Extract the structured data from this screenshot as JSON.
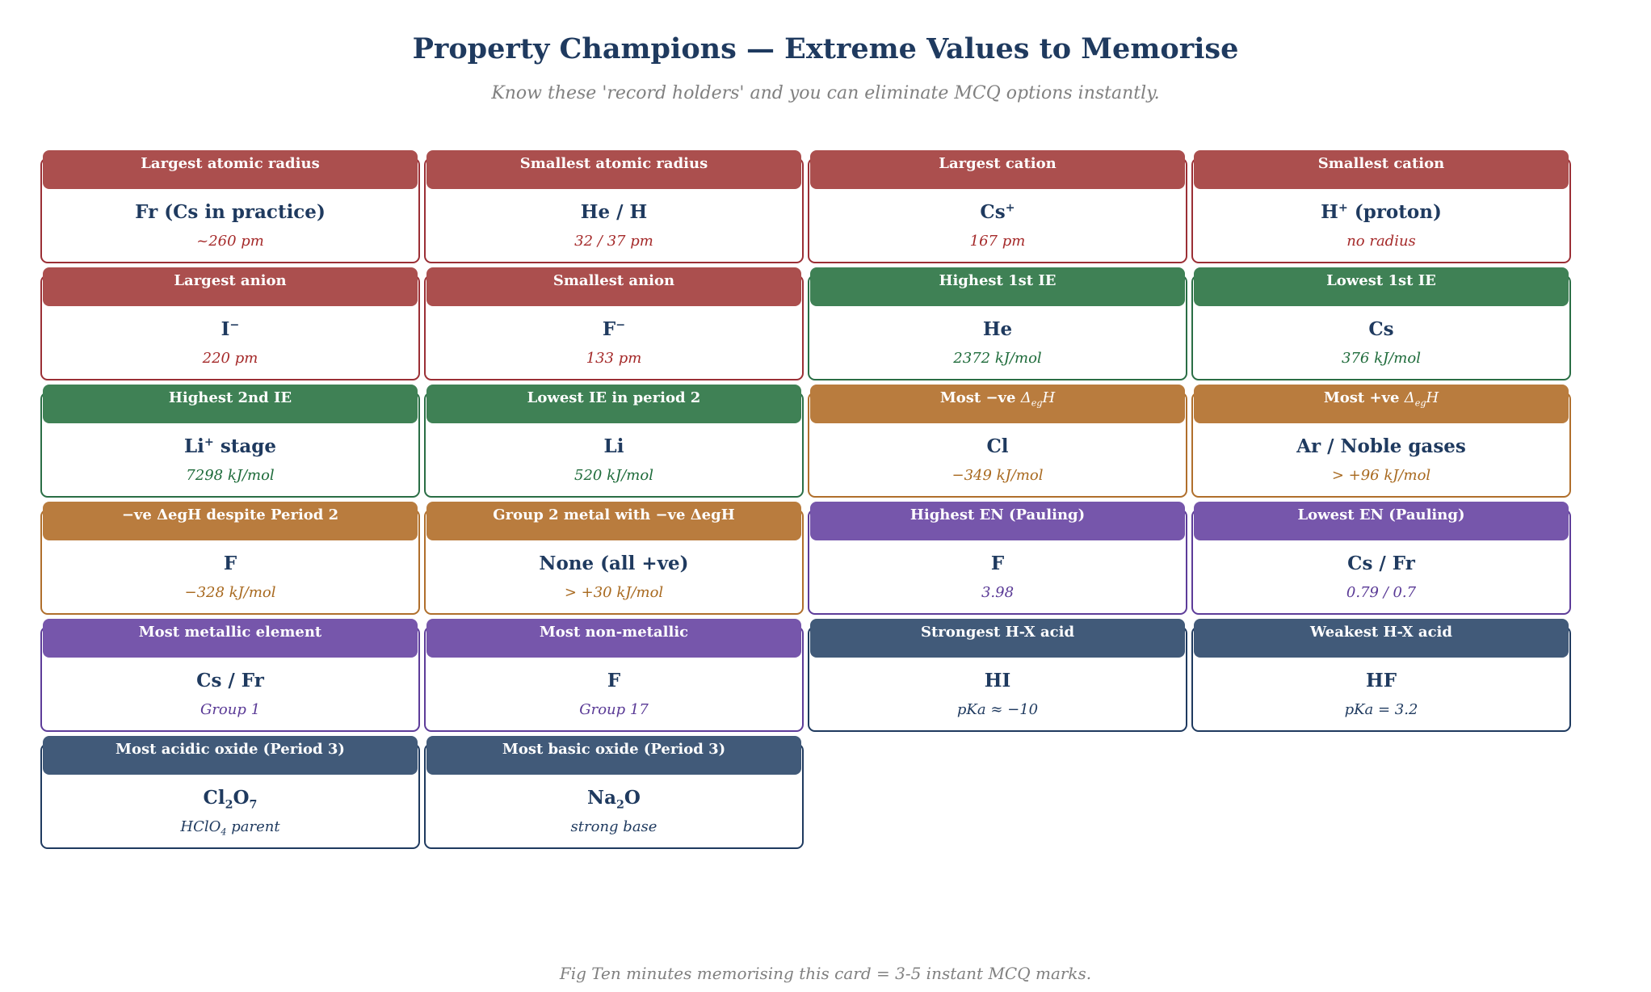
{
  "title": "Property Champions — Extreme Values to Memorise",
  "subtitle": "Know these 'record holders' and you can eliminate MCQ options instantly.",
  "caption": "Fig  Ten minutes memorising this card = 3-5 instant MCQ marks.",
  "colors": {
    "red": {
      "border": "#9b2f35",
      "head": "#ab4f4e",
      "sub": "#a52a2a"
    },
    "green": {
      "border": "#2a6e45",
      "head": "#3f8155",
      "sub": "#1e6b3a"
    },
    "orange": {
      "border": "#b06f2c",
      "head": "#b97c3e",
      "sub": "#a8691f"
    },
    "purple": {
      "border": "#5d3c99",
      "head": "#7656ab",
      "sub": "#5a3a96"
    },
    "navy": {
      "border": "#1f3a5f",
      "head": "#415a79",
      "sub": "#1f3a5f"
    }
  },
  "cards": [
    {
      "color": "red",
      "header": "Largest atomic radius",
      "value": "Fr (Cs in practice)",
      "note": "~260 pm"
    },
    {
      "color": "red",
      "header": "Smallest atomic radius",
      "value": "He / H",
      "note": "32 / 37 pm"
    },
    {
      "color": "red",
      "header": "Largest cation",
      "value": "Cs<sup>+</sup>",
      "note": "167 pm"
    },
    {
      "color": "red",
      "header": "Smallest cation",
      "value": "H<sup>+</sup> (proton)",
      "note": "no radius"
    },
    {
      "color": "red",
      "header": "Largest anion",
      "value": "I<sup>−</sup>",
      "note": "220 pm"
    },
    {
      "color": "red",
      "header": "Smallest anion",
      "value": "F<sup>−</sup>",
      "note": "133 pm"
    },
    {
      "color": "green",
      "header": "Highest 1st IE",
      "value": "He",
      "note": "2372 kJ/mol"
    },
    {
      "color": "green",
      "header": "Lowest 1st IE",
      "value": "Cs",
      "note": "376 kJ/mol"
    },
    {
      "color": "green",
      "header": "Highest 2nd IE",
      "value": "Li<sup>+</sup> stage",
      "note": "7298 kJ/mol"
    },
    {
      "color": "green",
      "header": "Lowest IE in period 2",
      "value": "Li",
      "note": "520 kJ/mol"
    },
    {
      "color": "orange",
      "header": "Most −ve <i style=\"font-weight:normal\">Δ<sub>eg</sub>H</i>",
      "value": "Cl",
      "note": "−349 kJ/mol"
    },
    {
      "color": "orange",
      "header": "Most +ve <i style=\"font-weight:normal\">Δ<sub>eg</sub>H</i>",
      "value": "Ar / Noble gases",
      "note": "> +96 kJ/mol"
    },
    {
      "color": "orange",
      "header": "−ve ΔegH despite Period 2",
      "value": "F",
      "note": "−328 kJ/mol"
    },
    {
      "color": "orange",
      "header": "Group 2 metal with −ve ΔegH",
      "value": "None (all +ve)",
      "note": "> +30 kJ/mol"
    },
    {
      "color": "purple",
      "header": "Highest EN (Pauling)",
      "value": "F",
      "note": "3.98"
    },
    {
      "color": "purple",
      "header": "Lowest EN (Pauling)",
      "value": "Cs / Fr",
      "note": "0.79 / 0.7"
    },
    {
      "color": "purple",
      "header": "Most metallic element",
      "value": "Cs / Fr",
      "note": "Group 1"
    },
    {
      "color": "purple",
      "header": "Most non-metallic",
      "value": "F",
      "note": "Group 17"
    },
    {
      "color": "navy",
      "header": "Strongest H-X acid",
      "value": "HI",
      "note": "pKa ≈ −10"
    },
    {
      "color": "navy",
      "header": "Weakest H-X acid",
      "value": "HF",
      "note": "pKa = 3.2"
    },
    {
      "color": "navy",
      "header": "Most acidic oxide (Period 3)",
      "value": "Cl<sub>2</sub>O<sub>7</sub>",
      "note": "HClO<sub>4</sub> parent"
    },
    {
      "color": "navy",
      "header": "Most basic oxide (Period 3)",
      "value": "Na<sub>2</sub>O",
      "note": "strong base"
    }
  ]
}
